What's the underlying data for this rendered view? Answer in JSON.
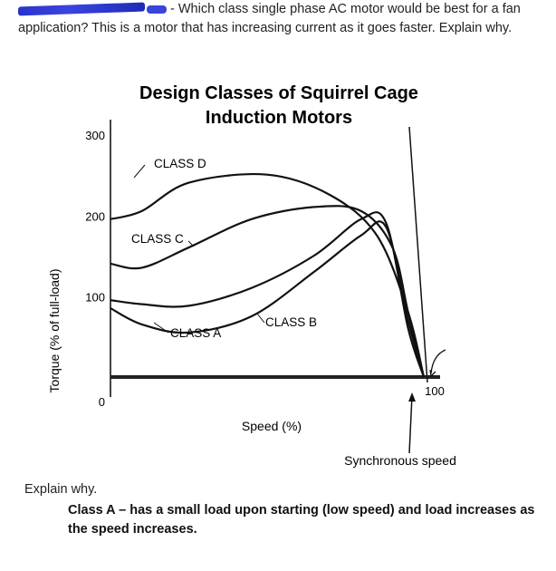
{
  "question": {
    "text": "- Which class single phase AC motor would be best for a fan application? This is a motor that has increasing current as it goes faster.  Explain why."
  },
  "chart_data": {
    "type": "line",
    "title": "Design Classes of Squirrel Cage Induction Motors",
    "title_line1": "Design Classes of Squirrel Cage",
    "title_line2": "Induction Motors",
    "xlabel": "Speed (%)",
    "ylabel": "Torque (% of full-load)",
    "xlim": [
      0,
      100
    ],
    "ylim": [
      0,
      300
    ],
    "yticks": [
      "300",
      "200",
      "100",
      "0"
    ],
    "xticks": [
      "100"
    ],
    "annotation": "Synchronous speed",
    "grid": false,
    "series": [
      {
        "name": "CLASS D",
        "x": [
          0,
          10,
          25,
          50,
          70,
          85,
          95,
          100
        ],
        "y": [
          195,
          205,
          240,
          250,
          225,
          175,
          80,
          0
        ]
      },
      {
        "name": "CLASS C",
        "x": [
          0,
          10,
          25,
          45,
          65,
          80,
          90,
          95,
          100
        ],
        "y": [
          140,
          135,
          160,
          195,
          210,
          205,
          160,
          80,
          0
        ]
      },
      {
        "name": "CLASS B",
        "x": [
          0,
          10,
          25,
          45,
          65,
          80,
          88,
          95,
          100
        ],
        "y": [
          95,
          90,
          88,
          110,
          150,
          195,
          190,
          60,
          0
        ]
      },
      {
        "name": "CLASS A",
        "x": [
          0,
          10,
          25,
          45,
          65,
          80,
          88,
          95,
          100
        ],
        "y": [
          85,
          65,
          55,
          75,
          130,
          175,
          185,
          70,
          0
        ]
      }
    ]
  },
  "footer": {
    "explain_label": "Explain why.",
    "answer": "Class A – has a small load upon starting (low speed) and load increases as the speed increases."
  }
}
